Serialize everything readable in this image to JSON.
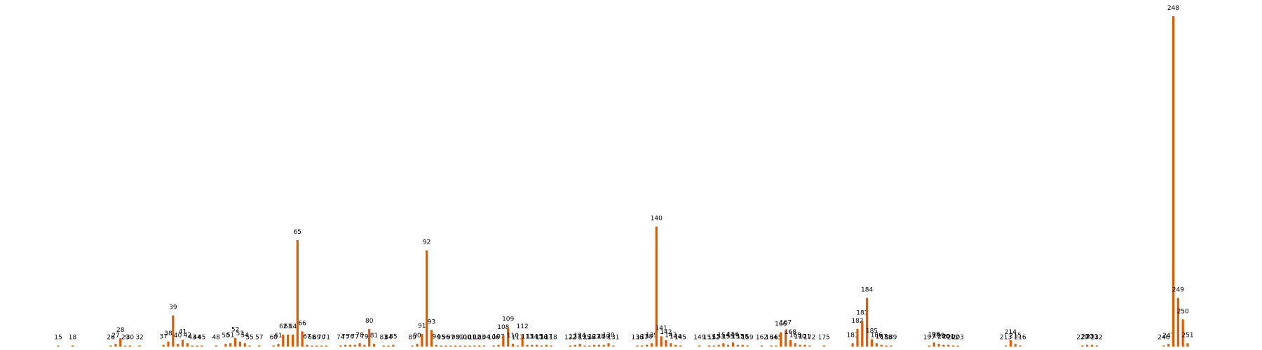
{
  "chart_data": {
    "type": "bar",
    "color": "#e05a00",
    "x": [
      15,
      18,
      26,
      27,
      28,
      29,
      30,
      32,
      37,
      38,
      39,
      40,
      41,
      42,
      43,
      44,
      45,
      48,
      50,
      51,
      52,
      53,
      54,
      55,
      57,
      60,
      61,
      62,
      63,
      64,
      65,
      66,
      67,
      68,
      69,
      70,
      71,
      74,
      75,
      76,
      77,
      78,
      79,
      80,
      81,
      83,
      84,
      85,
      89,
      90,
      91,
      92,
      93,
      94,
      95,
      96,
      97,
      98,
      99,
      100,
      101,
      102,
      103,
      104,
      106,
      107,
      108,
      109,
      110,
      111,
      112,
      113,
      114,
      115,
      116,
      117,
      118,
      122,
      123,
      124,
      125,
      126,
      127,
      128,
      129,
      130,
      131,
      136,
      137,
      138,
      139,
      140,
      141,
      142,
      143,
      144,
      145,
      149,
      151,
      152,
      153,
      154,
      155,
      156,
      157,
      158,
      159,
      162,
      164,
      165,
      166,
      167,
      168,
      169,
      170,
      171,
      172,
      175,
      181,
      182,
      183,
      184,
      185,
      186,
      187,
      188,
      189,
      197,
      198,
      199,
      200,
      201,
      202,
      203,
      213,
      214,
      215,
      216,
      229,
      230,
      231,
      232,
      246,
      247,
      248,
      249,
      250,
      251
    ],
    "values": [
      0.3,
      0.3,
      0.3,
      0.8,
      2.5,
      0.3,
      0.3,
      0.3,
      0.5,
      1.5,
      9.4,
      0.8,
      2,
      1,
      0.3,
      0.3,
      0.3,
      0.3,
      0.8,
      1,
      2.6,
      1.5,
      1,
      0.3,
      0.3,
      0.3,
      0.8,
      3.6,
      3.6,
      3.6,
      32.2,
      4.6,
      0.5,
      0.3,
      0.3,
      0.3,
      0.3,
      0.3,
      0.5,
      0.5,
      0.5,
      1,
      0.5,
      5.3,
      0.8,
      0.3,
      0.3,
      0.5,
      0.3,
      0.8,
      3.8,
      29.1,
      5,
      0.5,
      0.3,
      0.3,
      0.3,
      0.3,
      0.3,
      0.3,
      0.3,
      0.3,
      0.3,
      0.3,
      0.3,
      0.5,
      3.4,
      5.8,
      0.8,
      0.3,
      3.6,
      0.5,
      0.5,
      0.5,
      0.3,
      0.5,
      0.3,
      0.3,
      0.5,
      0.8,
      0.3,
      0.3,
      0.5,
      0.5,
      0.5,
      1,
      0.3,
      0.3,
      0.3,
      0.5,
      1,
      36.3,
      3.1,
      1.9,
      1,
      0.5,
      0.3,
      0.3,
      0.3,
      0.3,
      0.5,
      1,
      0.5,
      1.2,
      0.5,
      0.5,
      0.3,
      0.3,
      0.3,
      0.3,
      4.3,
      4.8,
      1.9,
      1,
      0.5,
      0.5,
      0.3,
      0.3,
      1,
      5.3,
      7.7,
      14.7,
      2.2,
      1,
      0.5,
      0.3,
      0.3,
      0.3,
      1.2,
      0.8,
      0.5,
      0.5,
      0.3,
      0.3,
      0.3,
      1.9,
      0.8,
      0.3,
      0.3,
      0.5,
      0.5,
      0.3,
      0.3,
      0.8,
      100,
      14.7,
      8.2,
      1
    ]
  }
}
